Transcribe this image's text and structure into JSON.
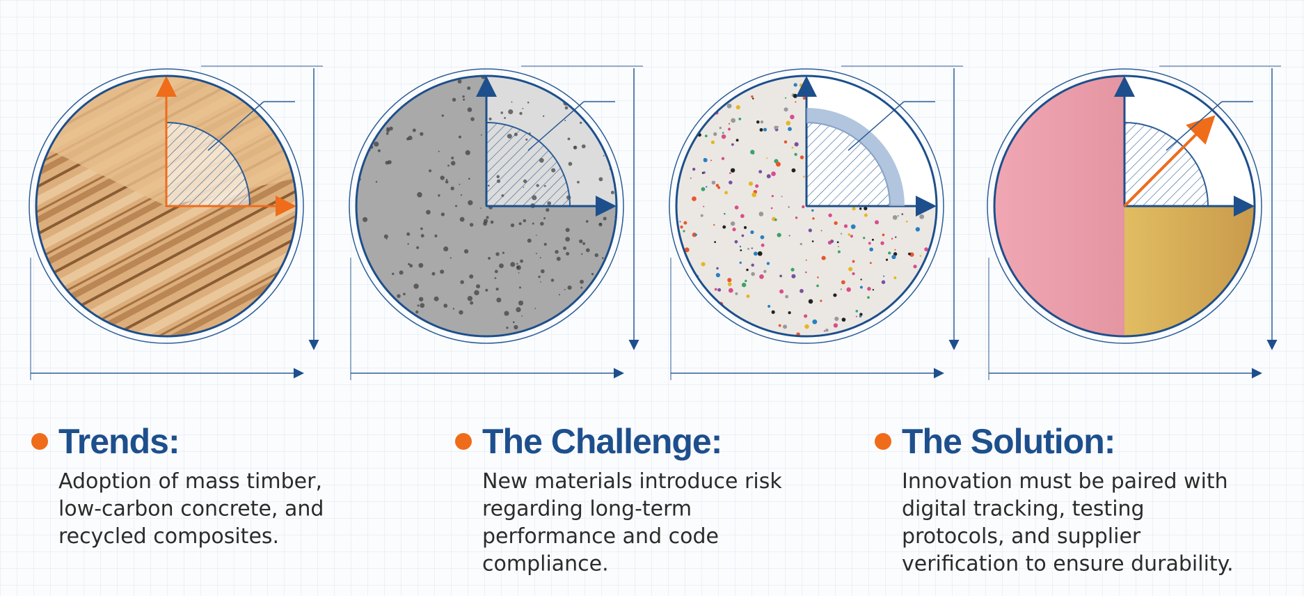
{
  "columns": [
    {
      "heading": "Trends:",
      "body": [
        "Adoption of mass timber,",
        "low-carbon concrete, and",
        "recycled composites."
      ]
    },
    {
      "heading": "The Challenge:",
      "body": [
        "New materials introduce risk",
        "regarding long-term",
        "performance and code",
        "compliance."
      ]
    },
    {
      "heading": "The Solution:",
      "body": [
        "Innovation must be paired with",
        "digital tracking, testing",
        "protocols, and supplier",
        "verification to ensure durability."
      ]
    }
  ]
}
